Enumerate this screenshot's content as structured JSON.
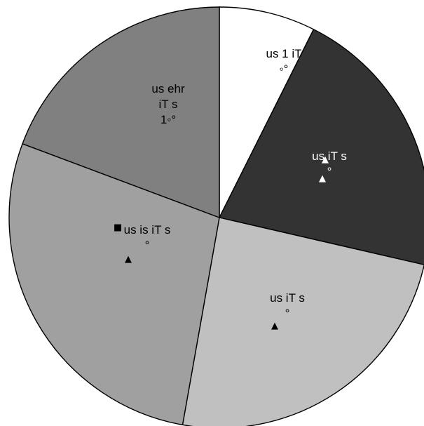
{
  "chart_data": {
    "type": "pie",
    "title": "",
    "start_angle_deg": 0,
    "direction": "clockwise",
    "slices": [
      {
        "value": 7.4,
        "label_lines": [
          "us 1   iT",
          "◦°"
        ],
        "color": "#ffffff",
        "text_color": "#000000"
      },
      {
        "value": 21.2,
        "label_lines": [
          "us      iT  s",
          "°"
        ],
        "color": "#333333",
        "text_color": "#ffffff"
      },
      {
        "value": 24.2,
        "label_lines": [
          "us       iT  s",
          "°"
        ],
        "color": "#c0c0c0",
        "text_color": "#000000"
      },
      {
        "value": 27.9,
        "label_lines": [
          "us     is      iT  s",
          "°"
        ],
        "color": "#a0a0a0",
        "text_color": "#000000"
      },
      {
        "value": 19.3,
        "label_lines": [
          "us    ehr",
          "iT  s",
          "1◦°"
        ],
        "color": "#808080",
        "text_color": "#000000"
      }
    ]
  }
}
